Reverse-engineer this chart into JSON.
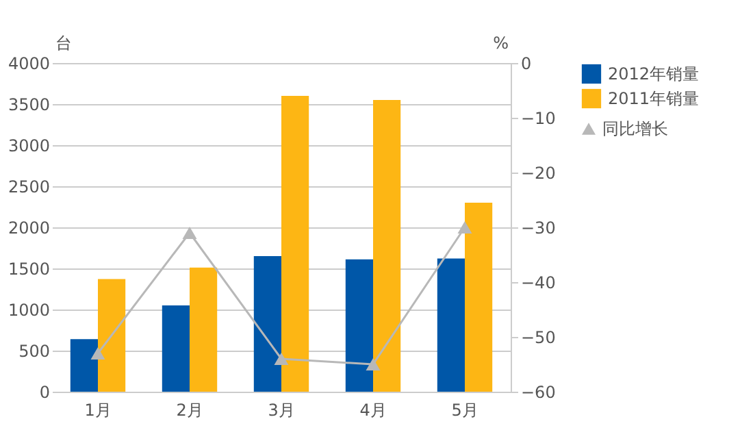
{
  "chart_data": {
    "type": "bar",
    "ylabel": "台",
    "y2label": "%",
    "categories": [
      "1月",
      "2月",
      "3月",
      "4月",
      "5月"
    ],
    "series": [
      {
        "name": "2012年销量",
        "color": "#0057a8",
        "values": [
          640,
          1050,
          1650,
          1610,
          1620
        ]
      },
      {
        "name": "2011年销量",
        "color": "#fdb614",
        "values": [
          1370,
          1510,
          3600,
          3550,
          2300
        ]
      },
      {
        "name": "同比增长",
        "type": "line",
        "axis": "y2",
        "color": "#b8b8b8",
        "marker": "triangle",
        "values": [
          -53,
          -31,
          -54,
          -55,
          -30
        ]
      }
    ],
    "ylim": [
      0,
      4000
    ],
    "yticks": [
      0,
      500,
      1000,
      1500,
      2000,
      2500,
      3000,
      3500,
      4000
    ],
    "y2lim": [
      -60,
      0
    ],
    "y2ticks": [
      -60,
      -50,
      -40,
      -30,
      -20,
      -10,
      0
    ],
    "grid": "y",
    "legend": "right"
  }
}
